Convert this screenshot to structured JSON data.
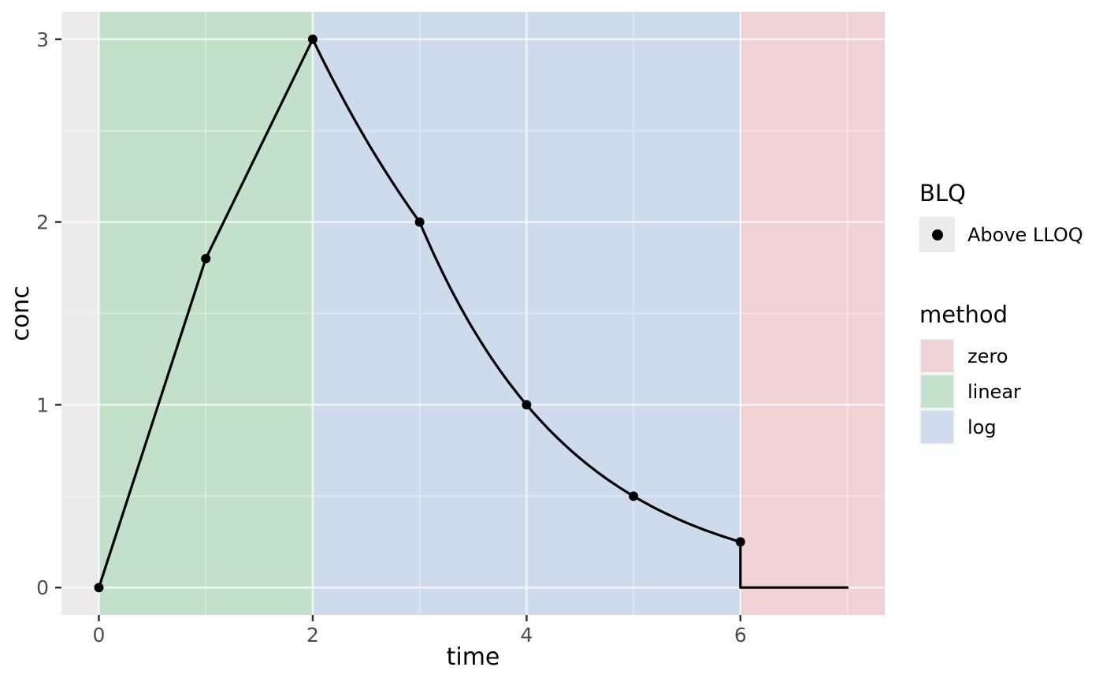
{
  "chart_data": {
    "type": "line",
    "title": "",
    "xlabel": "time",
    "ylabel": "conc",
    "xlim": [
      -0.35,
      7.35
    ],
    "ylim": [
      -0.15,
      3.15
    ],
    "x_major_ticks": [
      0,
      2,
      4,
      6
    ],
    "x_minor_ticks": [
      1,
      3,
      5,
      7
    ],
    "y_major_ticks": [
      0,
      1,
      2,
      3
    ],
    "y_minor_ticks": [
      0.5,
      1.5,
      2.5
    ],
    "grid": true,
    "panel_background": "#ebebeb",
    "grid_major_color": "rgba(255,255,255,0.70)",
    "grid_minor_color": "rgba(255,255,255,0.35)",
    "tick_color": "#333333",
    "tick_label_color": "#4d4d4d",
    "axis_title_color": "#000000",
    "series": {
      "name": "conc",
      "color": "#000000",
      "line_width": 3.2,
      "point_radius": 6,
      "points": [
        [
          0,
          0
        ],
        [
          1,
          1.8
        ],
        [
          2,
          3
        ],
        [
          3,
          2
        ],
        [
          4,
          1
        ],
        [
          5,
          0.5
        ],
        [
          6,
          0.25
        ]
      ],
      "segments": [
        {
          "from": [
            0,
            0
          ],
          "to": [
            1,
            1.8
          ],
          "interp": "linear"
        },
        {
          "from": [
            1,
            1.8
          ],
          "to": [
            2,
            3
          ],
          "interp": "linear"
        },
        {
          "from": [
            2,
            3
          ],
          "to": [
            3,
            2
          ],
          "interp": "log"
        },
        {
          "from": [
            3,
            2
          ],
          "to": [
            4,
            1
          ],
          "interp": "log"
        },
        {
          "from": [
            4,
            1
          ],
          "to": [
            5,
            0.5
          ],
          "interp": "log"
        },
        {
          "from": [
            5,
            0.5
          ],
          "to": [
            6,
            0.25
          ],
          "interp": "log"
        },
        {
          "from": [
            6,
            0.25
          ],
          "to": [
            6,
            0
          ],
          "interp": "linear"
        },
        {
          "from": [
            6,
            0
          ],
          "to": [
            7,
            0
          ],
          "interp": "linear"
        }
      ]
    },
    "bands": [
      {
        "method": "linear",
        "x_from": 0,
        "x_to": 2,
        "color": "#c3e0cb"
      },
      {
        "method": "log",
        "x_from": 2,
        "x_to": 6,
        "color": "#cedbec"
      },
      {
        "method": "zero",
        "x_from": 6,
        "x_to": 7.35,
        "color": "#f0d2d4"
      }
    ]
  },
  "legend": {
    "blq": {
      "title": "BLQ",
      "items": [
        {
          "label": "Above LLOQ",
          "marker": "point",
          "marker_color": "#000000",
          "key_background": "#ebebeb"
        }
      ]
    },
    "method": {
      "title": "method",
      "items": [
        {
          "label": "zero",
          "color": "#f0d3d6"
        },
        {
          "label": "linear",
          "color": "#c4e1cd"
        },
        {
          "label": "log",
          "color": "#cfdcee"
        }
      ]
    }
  }
}
